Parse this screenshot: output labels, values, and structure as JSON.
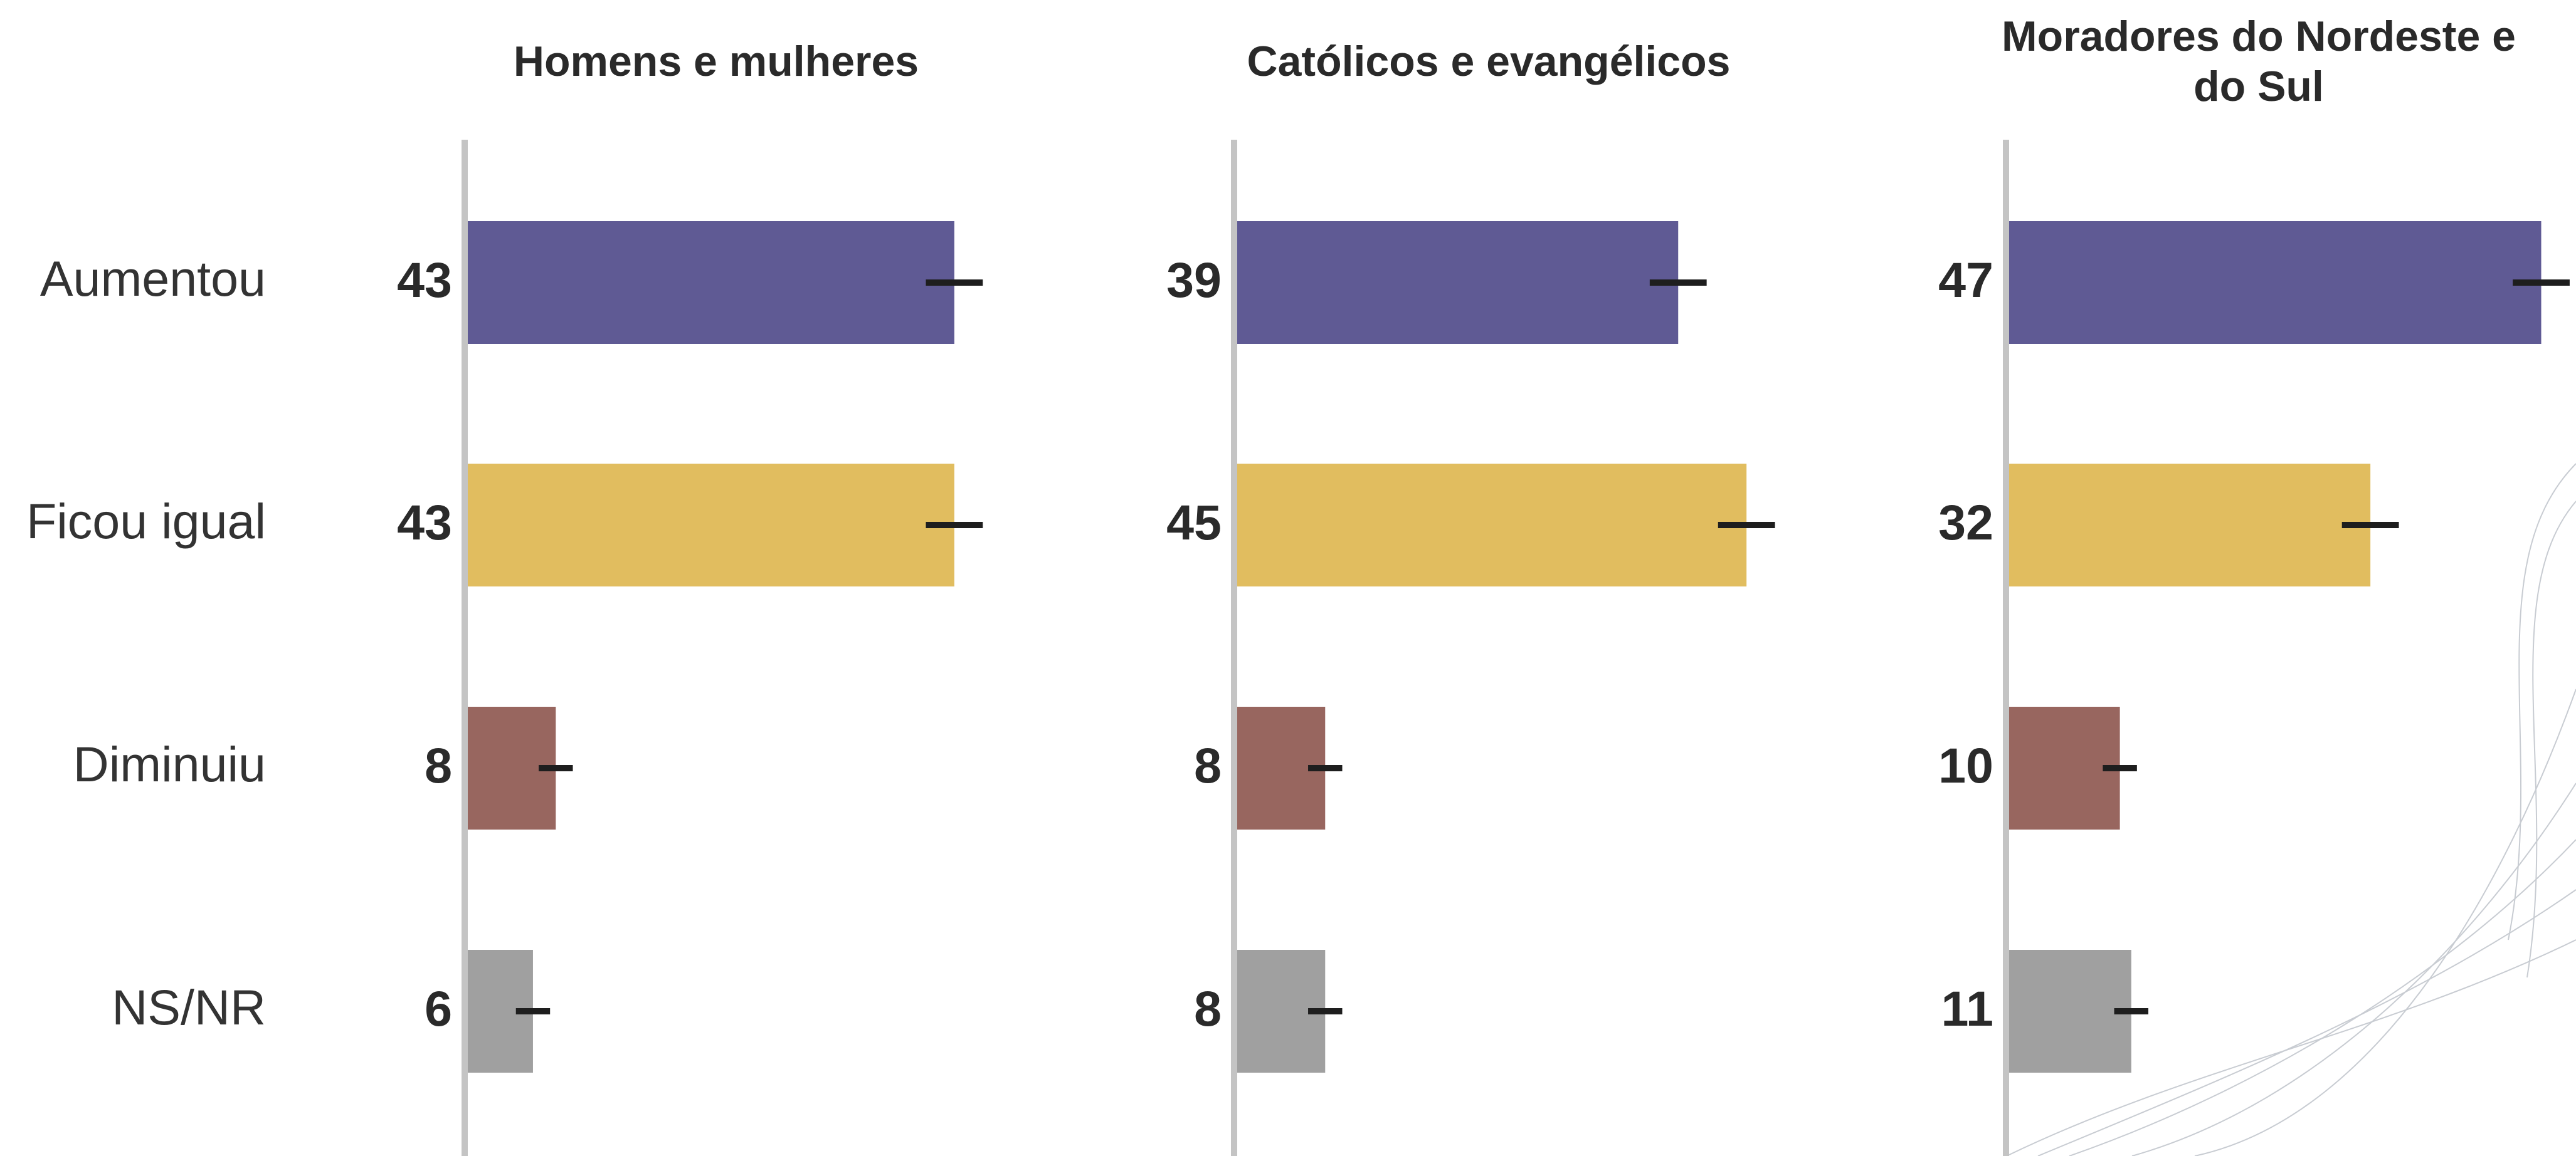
{
  "chart_data": {
    "type": "bar",
    "categories": [
      "Aumentou",
      "Ficou igual",
      "Diminuiu",
      "NS/NR"
    ],
    "colors": [
      "#5f5a94",
      "#e1bd5f",
      "#98665f",
      "#a0a0a0"
    ],
    "xlim": [
      0,
      50
    ],
    "panels": [
      {
        "title": "Homens e mulheres",
        "values": [
          43,
          43,
          8,
          6
        ],
        "errors": [
          2.5,
          2.5,
          1.5,
          1.5
        ]
      },
      {
        "title": "Católicos e evangélicos",
        "values": [
          39,
          45,
          8,
          8
        ],
        "errors": [
          2.5,
          2.5,
          1.5,
          1.5
        ]
      },
      {
        "title": "Moradores do Nordeste e do Sul",
        "values": [
          47,
          32,
          10,
          11
        ],
        "errors": [
          2.5,
          2.5,
          1.5,
          1.5
        ]
      }
    ]
  }
}
